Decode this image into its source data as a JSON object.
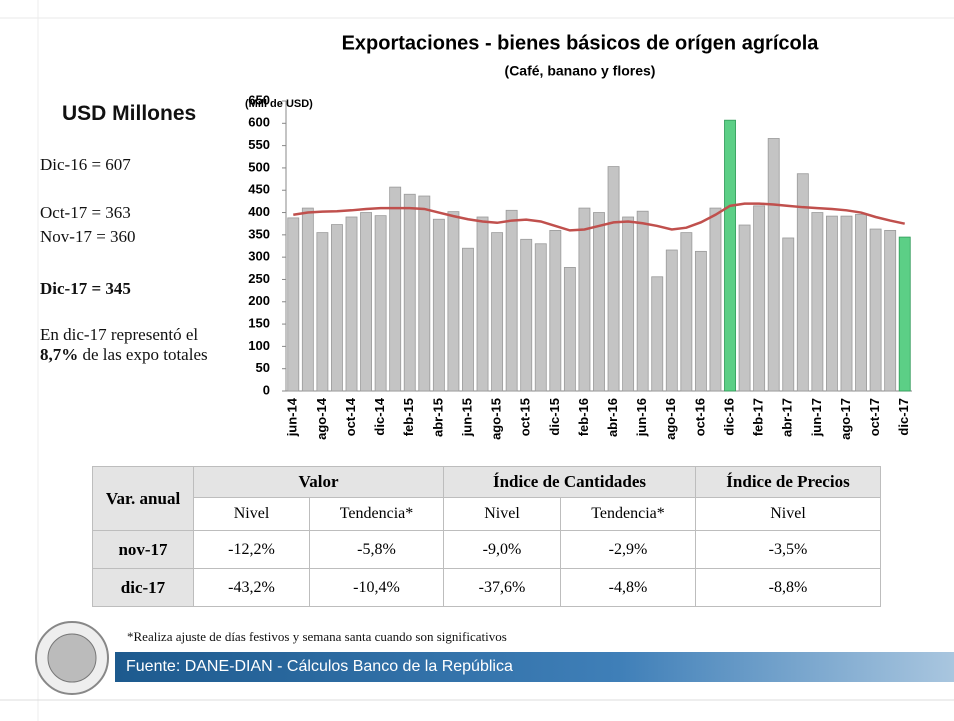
{
  "sidebar": {
    "heading": "USD Millones",
    "lines": [
      "Dic-16 = 607",
      "Oct-17 = 363",
      "Nov-17 = 360",
      "Dic-17 = 345"
    ],
    "note": [
      "En dic-17 representó el ",
      "8,7%",
      " de las expo totales"
    ]
  },
  "chart_data": {
    "type": "bar",
    "title": "Exportaciones - bienes básicos de orígen agrícola",
    "subtitle": "(Café, banano y flores)",
    "y_label": "(Mill de USD)",
    "categories": [
      "jun-14",
      null,
      "ago-14",
      null,
      "oct-14",
      null,
      "dic-14",
      null,
      "feb-15",
      null,
      "abr-15",
      null,
      "jun-15",
      null,
      "ago-15",
      null,
      "oct-15",
      null,
      "dic-15",
      null,
      "feb-16",
      null,
      "abr-16",
      null,
      "jun-16",
      null,
      "ago-16",
      null,
      "oct-16",
      null,
      "dic-16",
      null,
      "feb-17",
      null,
      "abr-17",
      null,
      "jun-17",
      null,
      "ago-17",
      null,
      "oct-17",
      null,
      "dic-17"
    ],
    "series": [
      {
        "type": "bar",
        "color": "#c4c4c4",
        "highlight_color": "#5ccf86",
        "highlight_categories": [
          "dic-16",
          "dic-17"
        ],
        "values": [
          388,
          410,
          355,
          373,
          390,
          400,
          393,
          457,
          441,
          437,
          385,
          402,
          320,
          390,
          355,
          405,
          340,
          330,
          360,
          277,
          410,
          400,
          503,
          390,
          403,
          256,
          316,
          355,
          313,
          410,
          607,
          372,
          415,
          566,
          343,
          487,
          400,
          392,
          392,
          396,
          363,
          360,
          345
        ]
      },
      {
        "type": "line",
        "color": "#c0504d",
        "values": [
          395,
          400,
          402,
          403,
          405,
          408,
          410,
          410,
          410,
          408,
          400,
          392,
          385,
          380,
          377,
          382,
          384,
          380,
          370,
          360,
          362,
          370,
          378,
          380,
          376,
          370,
          362,
          366,
          378,
          395,
          415,
          420,
          420,
          418,
          415,
          412,
          410,
          408,
          405,
          400,
          390,
          382,
          375
        ]
      }
    ],
    "ylim": [
      0,
      650
    ],
    "yticks": [
      0,
      50,
      100,
      150,
      200,
      250,
      300,
      350,
      400,
      450,
      500,
      550,
      600,
      650
    ]
  },
  "table": {
    "corner": "Var. anual",
    "groups": [
      "Valor",
      "Índice de Cantidades",
      "Índice de Precios"
    ],
    "subheaders": [
      "Nivel",
      "Tendencia*",
      "Nivel",
      "Tendencia*",
      "Nivel"
    ],
    "rows": [
      [
        "nov-17",
        "-12,2%",
        "-5,8%",
        "-9,0%",
        "-2,9%",
        "-3,5%"
      ],
      [
        "dic-17",
        "-43,2%",
        "-10,4%",
        "-37,6%",
        "-4,8%",
        "-8,8%"
      ]
    ]
  },
  "footer": {
    "note": "*Realiza ajuste de días festivos y semana santa cuando son significativos",
    "source": "Fuente: DANE-DIAN - Cálculos Banco de la República"
  }
}
